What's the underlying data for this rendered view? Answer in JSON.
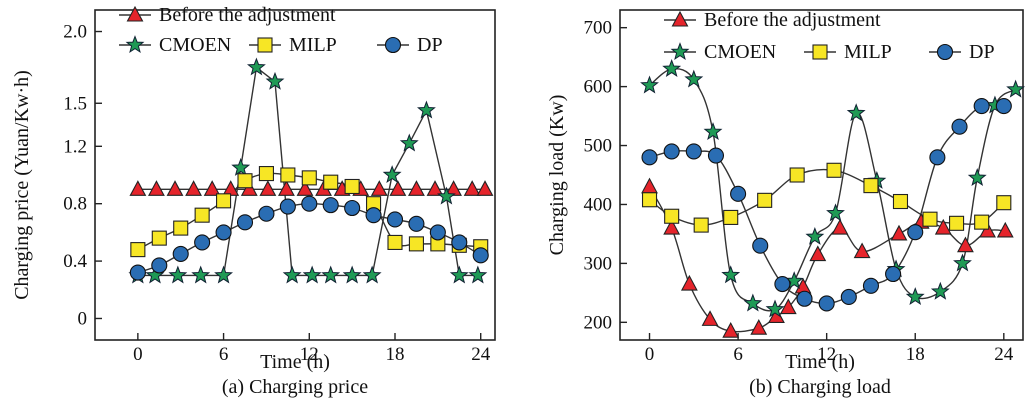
{
  "figure": {
    "panels": [
      "a",
      "b"
    ]
  },
  "styles": {
    "before_color": "#e5242b",
    "cmoen_color": "#1f9a55",
    "milp_color": "#f7e625",
    "dp_color": "#2a6db3",
    "line_color": "#333333"
  },
  "chart_data": [
    {
      "id": "a",
      "type": "line",
      "caption": "(a) Charging price",
      "xlabel": "Time (h)",
      "ylabel": "Charging price (Yuan/Kw·h)",
      "xlim": [
        -3,
        25
      ],
      "ylim": [
        -0.15,
        2.15
      ],
      "xticks": [
        0,
        6,
        12,
        18,
        24
      ],
      "yticks": [
        0,
        0.4,
        0.8,
        1.2,
        1.5,
        2.0
      ],
      "ytick_labels": [
        "0",
        "0.4",
        "0.8",
        "1.2",
        "1.5",
        "2.0"
      ],
      "grid": false,
      "legend_placement": "top-left",
      "series": [
        {
          "name": "Before the adjustment",
          "marker": "triangle",
          "x": [
            0,
            1.3,
            2.6,
            3.9,
            5.2,
            6.5,
            7.8,
            9.1,
            10.4,
            11.7,
            13,
            14.3,
            15.6,
            16.9,
            18.2,
            19.5,
            20.8,
            22.1,
            23.4,
            24.3
          ],
          "y": [
            0.9,
            0.9,
            0.9,
            0.9,
            0.9,
            0.9,
            0.9,
            0.9,
            0.9,
            0.9,
            0.9,
            0.9,
            0.9,
            0.9,
            0.9,
            0.9,
            0.9,
            0.9,
            0.9,
            0.9
          ]
        },
        {
          "name": "CMOEN",
          "marker": "star",
          "x": [
            0,
            1.2,
            2.8,
            4.4,
            6.0,
            7.2,
            8.3,
            9.6,
            10.8,
            12.2,
            13.5,
            15.0,
            16.4,
            17.8,
            19.0,
            20.2,
            21.6,
            22.5,
            23.8
          ],
          "y": [
            0.3,
            0.3,
            0.3,
            0.3,
            0.3,
            1.05,
            1.75,
            1.65,
            0.3,
            0.3,
            0.3,
            0.3,
            0.3,
            1.0,
            1.22,
            1.45,
            0.85,
            0.3,
            0.3
          ]
        },
        {
          "name": "MILP",
          "marker": "square",
          "x": [
            0,
            1.5,
            3.0,
            4.5,
            6.0,
            7.5,
            9.0,
            10.5,
            12.0,
            13.5,
            15.0,
            16.5,
            18.0,
            19.5,
            21.0,
            22.5,
            24.0
          ],
          "y": [
            0.48,
            0.56,
            0.63,
            0.72,
            0.82,
            0.96,
            1.01,
            1.0,
            0.98,
            0.95,
            0.92,
            0.8,
            0.53,
            0.52,
            0.52,
            0.51,
            0.5
          ]
        },
        {
          "name": "DP",
          "marker": "circle",
          "x": [
            0,
            1.5,
            3.0,
            4.5,
            6.0,
            7.5,
            9.0,
            10.5,
            12.0,
            13.5,
            15.0,
            16.5,
            18.0,
            19.5,
            21.0,
            22.5,
            24.0
          ],
          "y": [
            0.32,
            0.37,
            0.45,
            0.53,
            0.6,
            0.67,
            0.73,
            0.78,
            0.8,
            0.79,
            0.77,
            0.72,
            0.69,
            0.66,
            0.6,
            0.53,
            0.44
          ]
        }
      ]
    },
    {
      "id": "b",
      "type": "line",
      "caption": "(b) Charging load",
      "xlabel": "Time (h)",
      "ylabel": "Charging load (Kw)",
      "xlim": [
        -2,
        25.3
      ],
      "ylim": [
        170,
        730
      ],
      "xticks": [
        0,
        6,
        12,
        18,
        24
      ],
      "yticks": [
        200,
        300,
        400,
        500,
        600,
        700
      ],
      "ytick_labels": [
        "200",
        "300",
        "400",
        "500",
        "600",
        "700"
      ],
      "grid": false,
      "legend_placement": "top",
      "series": [
        {
          "name": "Before the adjustment",
          "marker": "triangle",
          "x": [
            0,
            1.5,
            2.7,
            4.1,
            5.5,
            7.4,
            8.6,
            9.4,
            10.4,
            11.4,
            12.9,
            14.4,
            16.9,
            18.4,
            19.9,
            21.4,
            22.9,
            24.1
          ],
          "y": [
            430,
            360,
            265,
            205,
            185,
            190,
            210,
            225,
            260,
            315,
            360,
            320,
            350,
            370,
            360,
            330,
            355,
            355
          ]
        },
        {
          "name": "CMOEN",
          "marker": "star",
          "x": [
            0,
            1.5,
            3.0,
            4.3,
            5.5,
            7.0,
            8.5,
            9.8,
            11.2,
            12.6,
            14.0,
            15.4,
            16.7,
            18.0,
            19.7,
            21.2,
            22.2,
            23.4,
            24.8
          ],
          "y": [
            602,
            630,
            612,
            523,
            280,
            232,
            222,
            270,
            345,
            385,
            555,
            440,
            290,
            243,
            252,
            300,
            445,
            568,
            595
          ]
        },
        {
          "name": "MILP",
          "marker": "square",
          "x": [
            0,
            1.5,
            3.5,
            5.5,
            7.8,
            10.0,
            12.5,
            15.0,
            17.0,
            19.0,
            20.8,
            22.5,
            24.0
          ],
          "y": [
            408,
            380,
            365,
            378,
            407,
            450,
            458,
            432,
            405,
            375,
            368,
            370,
            403
          ]
        },
        {
          "name": "DP",
          "marker": "circle",
          "x": [
            0,
            1.5,
            3.0,
            4.5,
            6.0,
            7.5,
            9.0,
            10.5,
            12.0,
            13.5,
            15.0,
            16.5,
            18.0,
            19.5,
            21.0,
            22.5,
            24.0
          ],
          "y": [
            480,
            490,
            490,
            483,
            418,
            330,
            265,
            240,
            232,
            243,
            262,
            282,
            353,
            480,
            532,
            567,
            567
          ]
        }
      ]
    }
  ]
}
